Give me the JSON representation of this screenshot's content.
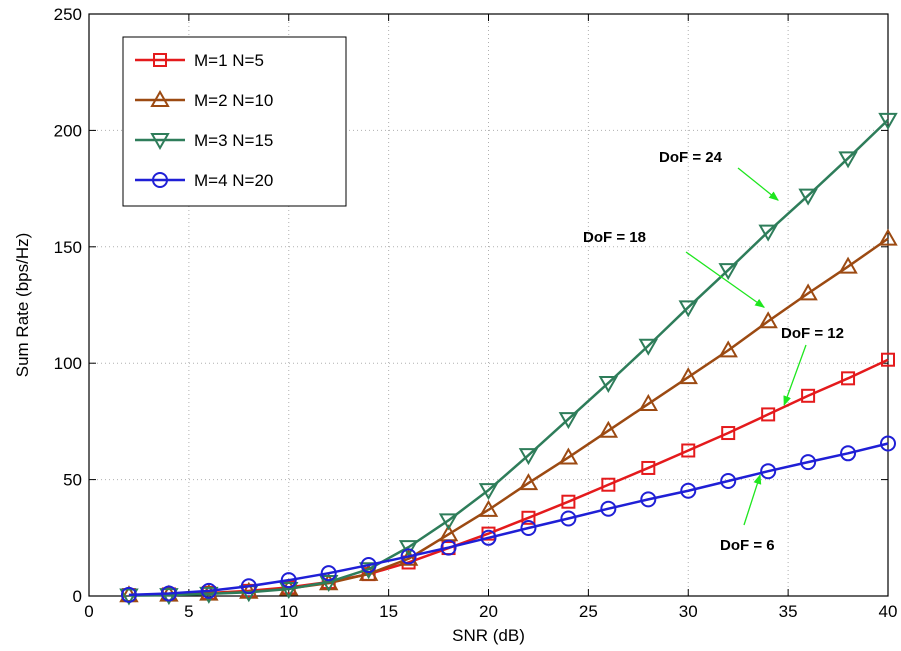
{
  "chart_data": {
    "type": "line",
    "title": "",
    "xlabel": "SNR (dB)",
    "ylabel": "Sum Rate (bps/Hz)",
    "xlim": [
      0,
      40
    ],
    "ylim": [
      0,
      250
    ],
    "xticks": [
      0,
      5,
      10,
      15,
      20,
      25,
      30,
      35,
      40
    ],
    "yticks": [
      0,
      50,
      100,
      150,
      200,
      250
    ],
    "grid": true,
    "grid_style": "dotted",
    "legend_position": "top-left",
    "x": [
      2,
      4,
      6,
      8,
      10,
      12,
      14,
      16,
      18,
      20,
      22,
      24,
      26,
      28,
      30,
      32,
      34,
      36,
      38,
      40
    ],
    "series": [
      {
        "name": "M=1 N=5",
        "color": "#e41a1c",
        "marker": "square",
        "values": [
          0.4,
          0.7,
          1.3,
          2.2,
          3.7,
          6.0,
          9.4,
          14.4,
          20.6,
          26.8,
          33.6,
          40.5,
          47.8,
          55.0,
          62.5,
          70.0,
          78.0,
          86.0,
          93.5,
          101.5
        ]
      },
      {
        "name": "M=2 N=10",
        "color": "#9c4a12",
        "marker": "triangle-up",
        "values": [
          0.3,
          0.6,
          1.0,
          1.8,
          3.2,
          5.5,
          9.5,
          16.0,
          26.5,
          37.0,
          48.5,
          59.5,
          71.0,
          82.5,
          94.0,
          105.5,
          118.0,
          130.0,
          141.5,
          153.5
        ]
      },
      {
        "name": "M=3 N=15",
        "color": "#2e7d5a",
        "marker": "triangle-down",
        "values": [
          0.2,
          0.4,
          0.9,
          1.6,
          3.0,
          6.0,
          11.5,
          21.0,
          32.5,
          45.5,
          60.5,
          76.0,
          91.5,
          107.5,
          124.0,
          140.0,
          156.5,
          172.0,
          188.0,
          204.5
        ]
      },
      {
        "name": "M=4 N=20",
        "color": "#1f1fd6",
        "marker": "circle",
        "values": [
          0.5,
          1.1,
          2.2,
          4.2,
          6.8,
          9.8,
          13.3,
          17.0,
          20.8,
          25.0,
          29.2,
          33.3,
          37.5,
          41.5,
          45.2,
          49.4,
          53.6,
          57.5,
          61.3,
          65.5
        ]
      }
    ],
    "annotations": [
      {
        "text": "DoF = 24",
        "arrow_to": [
          34.5,
          170
        ]
      },
      {
        "text": "DoF = 18",
        "arrow_to": [
          33.8,
          124
        ]
      },
      {
        "text": "DoF = 12",
        "arrow_to": [
          34.8,
          82
        ]
      },
      {
        "text": "DoF = 6",
        "arrow_to": [
          33.6,
          52
        ]
      }
    ],
    "annotation_arrow_color": "#1ee61e"
  }
}
